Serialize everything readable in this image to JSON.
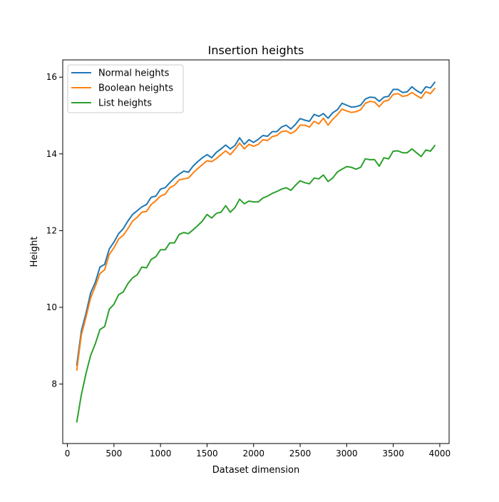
{
  "chart_data": {
    "type": "line",
    "title": "Insertion heights",
    "xlabel": "Dataset dimension",
    "ylabel": "Height",
    "xlim": [
      -50,
      4100
    ],
    "ylim": [
      6.45,
      16.45
    ],
    "xticks": [
      0,
      500,
      1000,
      1500,
      2000,
      2500,
      3000,
      3500,
      4000
    ],
    "yticks": [
      8,
      10,
      12,
      14,
      16
    ],
    "grid": false,
    "legend_position": "top-left",
    "x": [
      100,
      150,
      200,
      250,
      300,
      350,
      400,
      450,
      500,
      550,
      600,
      650,
      700,
      750,
      800,
      850,
      900,
      950,
      1000,
      1050,
      1100,
      1150,
      1200,
      1250,
      1300,
      1350,
      1400,
      1450,
      1500,
      1550,
      1600,
      1650,
      1700,
      1750,
      1800,
      1850,
      1900,
      1950,
      2000,
      2050,
      2100,
      2150,
      2200,
      2250,
      2300,
      2350,
      2400,
      2450,
      2500,
      2550,
      2600,
      2650,
      2700,
      2750,
      2800,
      2850,
      2900,
      2950,
      3000,
      3050,
      3100,
      3150,
      3200,
      3250,
      3300,
      3350,
      3400,
      3450,
      3500,
      3550,
      3600,
      3650,
      3700,
      3750,
      3800,
      3850,
      3900,
      3950
    ],
    "series": [
      {
        "name": "Normal heights",
        "color": "#1f77b4",
        "values": [
          8.48,
          9.38,
          9.85,
          10.38,
          10.65,
          11.05,
          11.12,
          11.52,
          11.7,
          11.92,
          12.05,
          12.25,
          12.42,
          12.52,
          12.62,
          12.68,
          12.87,
          12.9,
          13.08,
          13.12,
          13.25,
          13.37,
          13.47,
          13.55,
          13.52,
          13.68,
          13.8,
          13.9,
          13.98,
          13.9,
          14.04,
          14.13,
          14.23,
          14.13,
          14.22,
          14.42,
          14.25,
          14.37,
          14.3,
          14.38,
          14.48,
          14.46,
          14.58,
          14.58,
          14.7,
          14.75,
          14.65,
          14.77,
          14.92,
          14.88,
          14.85,
          15.03,
          14.98,
          15.05,
          14.93,
          15.07,
          15.15,
          15.32,
          15.27,
          15.22,
          15.23,
          15.27,
          15.43,
          15.48,
          15.47,
          15.37,
          15.48,
          15.5,
          15.68,
          15.68,
          15.6,
          15.62,
          15.75,
          15.65,
          15.58,
          15.75,
          15.72,
          15.88
        ]
      },
      {
        "name": "Boolean heights",
        "color": "#ff7f0e",
        "values": [
          8.35,
          9.28,
          9.75,
          10.25,
          10.55,
          10.88,
          10.98,
          11.38,
          11.55,
          11.78,
          11.88,
          12.05,
          12.25,
          12.35,
          12.48,
          12.5,
          12.68,
          12.78,
          12.9,
          12.95,
          13.12,
          13.18,
          13.32,
          13.35,
          13.37,
          13.5,
          13.62,
          13.72,
          13.82,
          13.8,
          13.88,
          13.98,
          14.08,
          13.98,
          14.12,
          14.28,
          14.13,
          14.25,
          14.2,
          14.25,
          14.37,
          14.35,
          14.45,
          14.48,
          14.58,
          14.6,
          14.53,
          14.6,
          14.75,
          14.75,
          14.7,
          14.85,
          14.78,
          14.93,
          14.75,
          14.9,
          15.02,
          15.17,
          15.12,
          15.08,
          15.1,
          15.15,
          15.32,
          15.37,
          15.35,
          15.23,
          15.37,
          15.4,
          15.55,
          15.57,
          15.5,
          15.52,
          15.6,
          15.52,
          15.45,
          15.62,
          15.57,
          15.72
        ]
      },
      {
        "name": "List heights",
        "color": "#2ca02c",
        "values": [
          7.0,
          7.72,
          8.28,
          8.75,
          9.05,
          9.42,
          9.5,
          9.95,
          10.08,
          10.33,
          10.4,
          10.62,
          10.77,
          10.85,
          11.05,
          11.03,
          11.25,
          11.32,
          11.5,
          11.5,
          11.68,
          11.68,
          11.9,
          11.95,
          11.92,
          12.02,
          12.13,
          12.25,
          12.42,
          12.33,
          12.45,
          12.48,
          12.65,
          12.48,
          12.6,
          12.82,
          12.7,
          12.77,
          12.75,
          12.75,
          12.85,
          12.9,
          12.97,
          13.02,
          13.08,
          13.12,
          13.05,
          13.18,
          13.3,
          13.25,
          13.22,
          13.37,
          13.35,
          13.45,
          13.28,
          13.37,
          13.53,
          13.6,
          13.67,
          13.65,
          13.6,
          13.65,
          13.87,
          13.85,
          13.85,
          13.68,
          13.9,
          13.87,
          14.07,
          14.08,
          14.03,
          14.03,
          14.13,
          14.03,
          13.93,
          14.1,
          14.07,
          14.23
        ]
      }
    ]
  }
}
